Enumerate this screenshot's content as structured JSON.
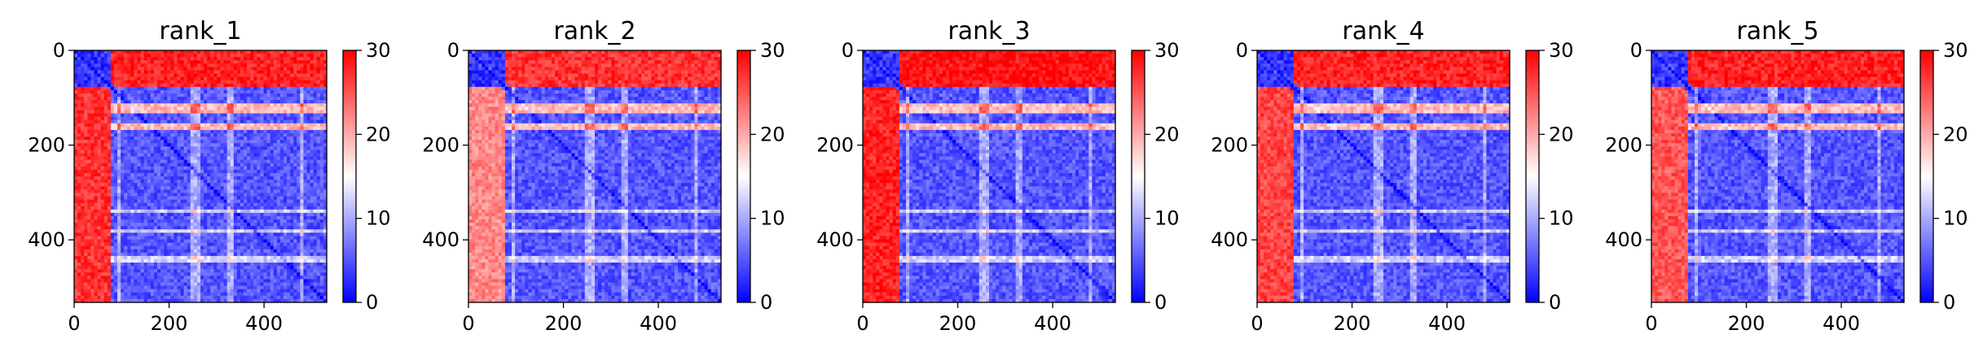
{
  "figure": {
    "background": "#ffffff"
  },
  "colormap": {
    "name": "bwr",
    "low": "#0000ff",
    "mid": "#ffffff",
    "high": "#ff0000"
  },
  "chart_data": [
    {
      "type": "heatmap",
      "title": "rank_1",
      "xlabel": "",
      "ylabel": "",
      "xlim": [
        0,
        532
      ],
      "ylim": [
        532,
        0
      ],
      "xticks": [
        0,
        200,
        400
      ],
      "yticks": [
        0,
        200,
        400
      ],
      "colorbar": {
        "vmin": 0,
        "vmax": 30,
        "ticks": [
          0,
          10,
          20,
          30
        ]
      },
      "grid": false,
      "description_of_values": {
        "split_index": 75,
        "diagonal": 0,
        "top_right_block_rows_0_75": 28,
        "left_block_cols_0_75_rows_75_532": 27,
        "bottom_right_background": 5,
        "bright_rows": [
          115,
          125,
          160,
          340,
          380,
          440
        ],
        "bright_cols": [
          95,
          250,
          260,
          330,
          480
        ]
      }
    },
    {
      "type": "heatmap",
      "title": "rank_2",
      "xlabel": "",
      "ylabel": "",
      "xlim": [
        0,
        532
      ],
      "ylim": [
        532,
        0
      ],
      "xticks": [
        0,
        200,
        400
      ],
      "yticks": [
        0,
        200,
        400
      ],
      "colorbar": {
        "vmin": 0,
        "vmax": 30,
        "ticks": [
          0,
          10,
          20,
          30
        ]
      },
      "grid": false,
      "description_of_values": {
        "split_index": 75,
        "diagonal": 0,
        "top_right_block_rows_0_75": 27,
        "left_block_cols_0_75_rows_75_532": 22,
        "bottom_right_background": 5,
        "bright_rows": [
          115,
          125,
          160,
          340,
          380,
          440
        ],
        "bright_cols": [
          95,
          250,
          260,
          330,
          480
        ]
      }
    },
    {
      "type": "heatmap",
      "title": "rank_3",
      "xlabel": "",
      "ylabel": "",
      "xlim": [
        0,
        532
      ],
      "ylim": [
        532,
        0
      ],
      "xticks": [
        0,
        200,
        400
      ],
      "yticks": [
        0,
        200,
        400
      ],
      "colorbar": {
        "vmin": 0,
        "vmax": 30,
        "ticks": [
          0,
          10,
          20,
          30
        ]
      },
      "grid": false,
      "description_of_values": {
        "split_index": 75,
        "diagonal": 0,
        "top_right_block_rows_0_75": 29,
        "left_block_cols_0_75_rows_75_532": 28,
        "bottom_right_background": 5,
        "bright_rows": [
          115,
          125,
          160,
          340,
          380,
          440
        ],
        "bright_cols": [
          95,
          250,
          260,
          330,
          480
        ]
      }
    },
    {
      "type": "heatmap",
      "title": "rank_4",
      "xlabel": "",
      "ylabel": "",
      "xlim": [
        0,
        532
      ],
      "ylim": [
        532,
        0
      ],
      "xticks": [
        0,
        200,
        400
      ],
      "yticks": [
        0,
        200,
        400
      ],
      "colorbar": {
        "vmin": 0,
        "vmax": 30,
        "ticks": [
          0,
          10,
          20,
          30
        ]
      },
      "grid": false,
      "description_of_values": {
        "split_index": 75,
        "diagonal": 0,
        "top_right_block_rows_0_75": 28,
        "left_block_cols_0_75_rows_75_532": 26,
        "bottom_right_background": 5,
        "bright_rows": [
          115,
          125,
          160,
          340,
          380,
          440
        ],
        "bright_cols": [
          95,
          250,
          260,
          330,
          480
        ]
      }
    },
    {
      "type": "heatmap",
      "title": "rank_5",
      "xlabel": "",
      "ylabel": "",
      "xlim": [
        0,
        532
      ],
      "ylim": [
        532,
        0
      ],
      "xticks": [
        0,
        200,
        400
      ],
      "yticks": [
        0,
        200,
        400
      ],
      "colorbar": {
        "vmin": 0,
        "vmax": 30,
        "ticks": [
          0,
          10,
          20,
          30
        ]
      },
      "grid": false,
      "description_of_values": {
        "split_index": 75,
        "diagonal": 0,
        "top_right_block_rows_0_75": 28,
        "left_block_cols_0_75_rows_75_532": 25,
        "bottom_right_background": 5,
        "bright_rows": [
          115,
          125,
          160,
          340,
          380,
          440
        ],
        "bright_cols": [
          95,
          250,
          260,
          330,
          480
        ]
      }
    }
  ]
}
